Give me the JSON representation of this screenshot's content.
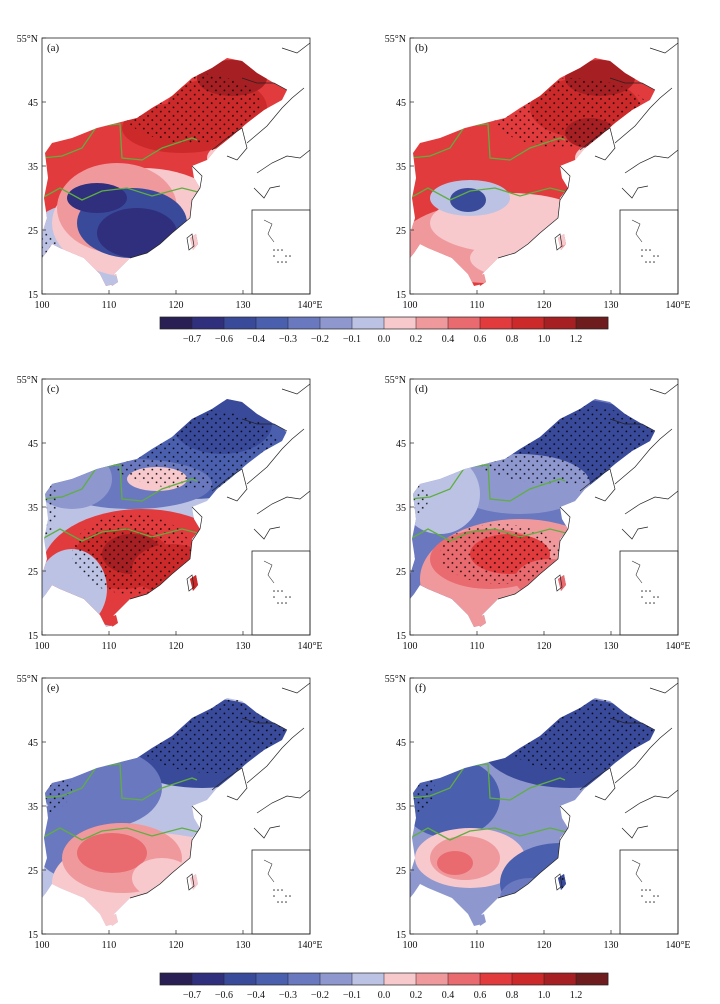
{
  "figure": {
    "lon_min": 100,
    "lon_max": 140,
    "lat_min": 15,
    "lat_max": 55,
    "x_ticks": [
      "100",
      "110",
      "120",
      "130",
      "140°E"
    ],
    "y_ticks": [
      "15",
      "25",
      "35",
      "45",
      "55°N"
    ]
  },
  "colorbar": {
    "labels": [
      "−0.7",
      "−0.6",
      "−0.4",
      "−0.3",
      "−0.2",
      "−0.1",
      "0.0",
      "0.2",
      "0.4",
      "0.6",
      "0.8",
      "1.0",
      "1.2"
    ],
    "colors": [
      "#2a1f55",
      "#2f2f7d",
      "#3a4a9a",
      "#4a5fae",
      "#6a79bf",
      "#8e98cf",
      "#bcc2e4",
      "#f7c9cc",
      "#f0999d",
      "#e96a6f",
      "#e23b3d",
      "#cc2a2a",
      "#a51f23",
      "#6e1c1e"
    ]
  },
  "panels": [
    {
      "label": "(a)",
      "pattern": "a"
    },
    {
      "label": "(b)",
      "pattern": "b"
    },
    {
      "label": "(c)",
      "pattern": "c"
    },
    {
      "label": "(d)",
      "pattern": "d"
    },
    {
      "label": "(e)",
      "pattern": "e"
    },
    {
      "label": "(f)",
      "pattern": "f"
    }
  ]
}
